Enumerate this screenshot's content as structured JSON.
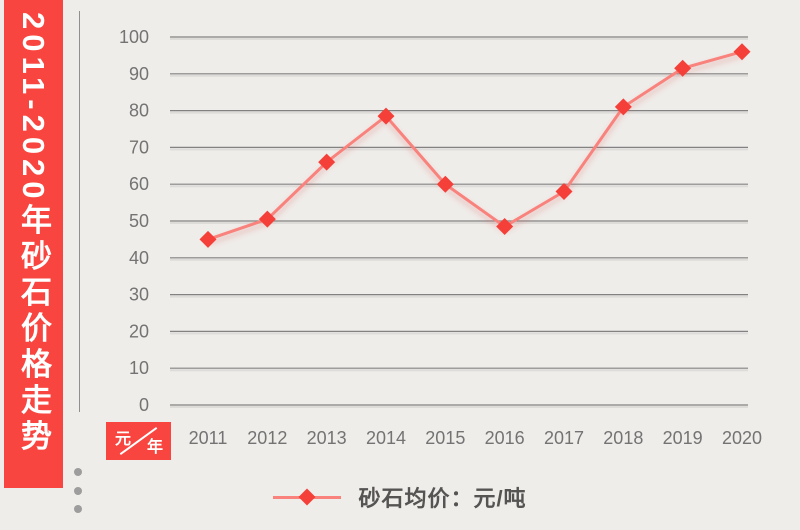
{
  "colors": {
    "background": "#efedea",
    "accent_red": "#f9453f",
    "line": "#f9827d",
    "marker": "#f5403a",
    "grid": "#7c7c7c",
    "tick_text": "#737373",
    "legend_text": "#565353",
    "dots": "#9d9d9d",
    "banner_text": "#ffffff"
  },
  "banner": {
    "title": "2011-2020年砂石价格走势"
  },
  "axis_unit_box": {
    "numerator": "元",
    "denominator": "年"
  },
  "legend": {
    "label": "砂石均价：元/吨"
  },
  "chart_data": {
    "type": "line",
    "title": "2011-2020年砂石价格走势",
    "categories": [
      "2011",
      "2012",
      "2013",
      "2014",
      "2015",
      "2016",
      "2017",
      "2018",
      "2019",
      "2020"
    ],
    "series": [
      {
        "name": "砂石均价（元/吨）",
        "values": [
          45,
          50.5,
          66,
          78.5,
          60,
          48.5,
          58,
          81,
          91.5,
          96
        ]
      }
    ],
    "xlabel": "年",
    "ylabel": "元",
    "ylim": [
      0,
      100
    ],
    "ytick_step": 10,
    "grid": true,
    "legend_position": "bottom",
    "marker": "diamond"
  },
  "decor": {
    "dot_count": 3
  }
}
